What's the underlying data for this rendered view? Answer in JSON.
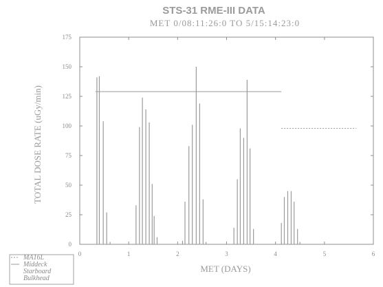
{
  "chart_data": {
    "type": "line",
    "title": "STS-31 RME-III DATA",
    "subtitle": "MET 0/08:11:26:0 TO 5/15:14:23:0",
    "xlabel": "MET (DAYS)",
    "ylabel": "TOTAL DOSE RATE (uGy/min)",
    "xlim": [
      0,
      6
    ],
    "ylim": [
      0,
      175
    ],
    "xticks": [
      0,
      1,
      2,
      3,
      4,
      5,
      6
    ],
    "yticks": [
      0,
      25,
      50,
      75,
      100,
      125,
      150,
      175
    ],
    "grid": false,
    "legend_position": "bottom-left",
    "series": [
      {
        "name": "MA16L",
        "style": "dotted",
        "x": [
          4.12,
          5.65
        ],
        "y": [
          98,
          98
        ]
      },
      {
        "name": "Middeck",
        "style": "solid",
        "x": [
          0.32,
          4.12
        ],
        "y": [
          129,
          129
        ]
      },
      {
        "name": "Starboard",
        "style": "spikes",
        "x": [
          0.35,
          0.4,
          0.48,
          0.55,
          0.62,
          1.15,
          1.22,
          1.28,
          1.35,
          1.42,
          1.48,
          1.52,
          1.58,
          2.1,
          2.15,
          2.23,
          2.3,
          2.38,
          2.45,
          2.52,
          2.58,
          3.15,
          3.22,
          3.28,
          3.35,
          3.42,
          3.48,
          3.55,
          4.12,
          4.18,
          4.25,
          4.32,
          4.38,
          4.45,
          4.5
        ],
        "y": [
          141,
          142,
          104,
          27,
          2,
          33,
          99,
          124,
          114,
          103,
          51,
          24,
          6,
          3,
          36,
          83,
          101,
          150,
          119,
          38,
          2,
          14,
          55,
          98,
          90,
          139,
          81,
          13,
          18,
          40,
          45,
          45,
          36,
          13,
          2
        ]
      },
      {
        "name": "Bulkhead",
        "style": "none",
        "x": [],
        "y": []
      }
    ]
  }
}
